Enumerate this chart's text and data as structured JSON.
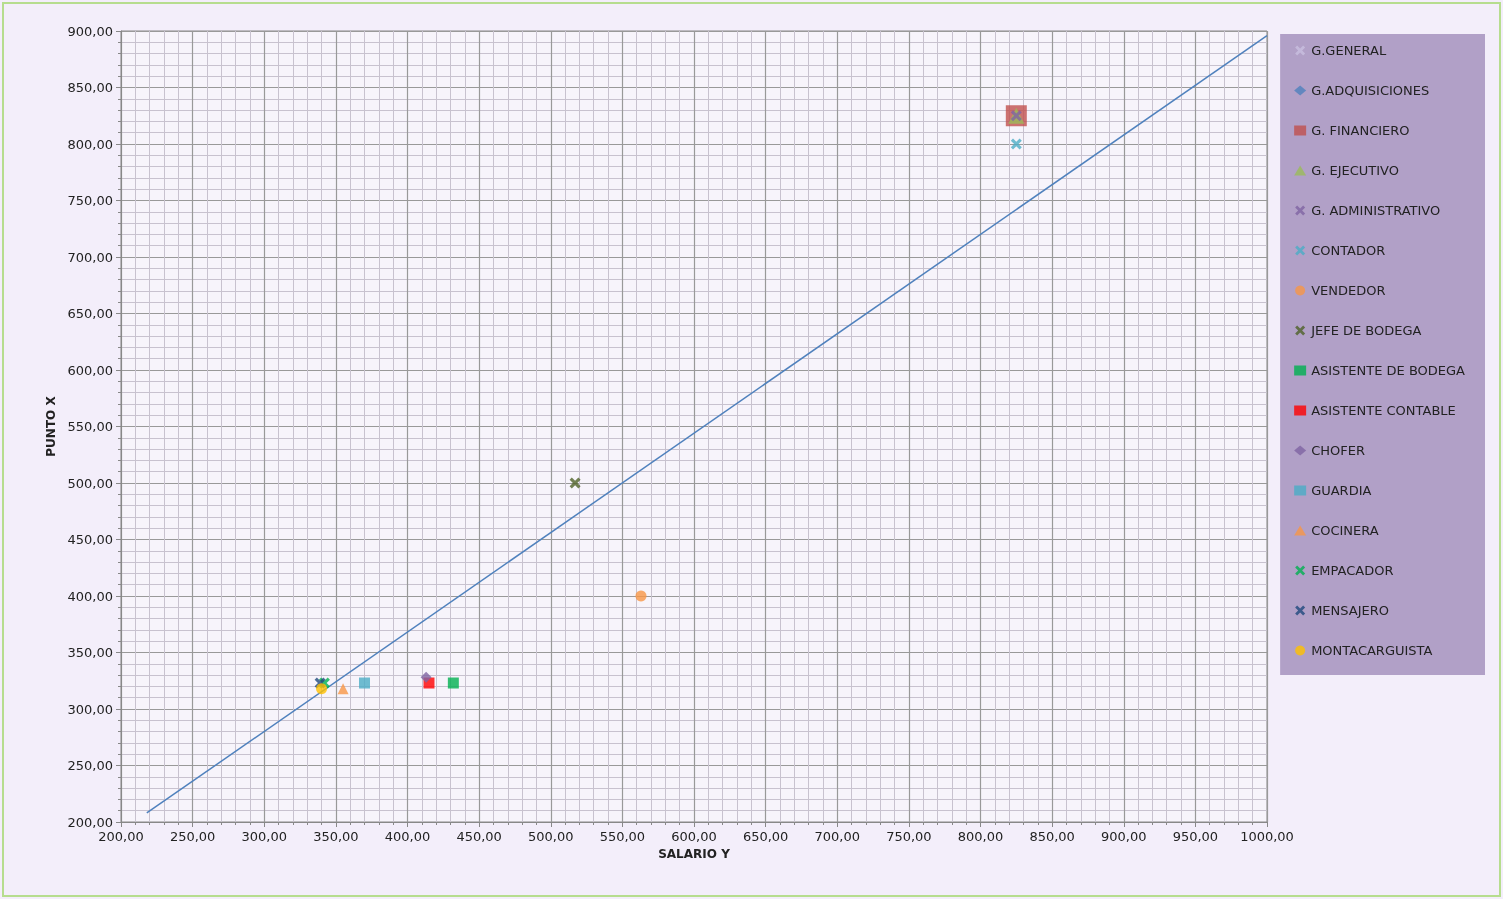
{
  "chart_data": {
    "type": "scatter",
    "xlabel": "SALARIO Y",
    "ylabel": "PUNTO X",
    "xlim": [
      200,
      1000
    ],
    "xticks": [
      {
        "value": 200,
        "label": "200,00"
      },
      {
        "value": 250,
        "label": "250,00"
      },
      {
        "value": 300,
        "label": "300,00"
      },
      {
        "value": 350,
        "label": "350,00"
      },
      {
        "value": 400,
        "label": "400,00"
      },
      {
        "value": 450,
        "label": "450,00"
      },
      {
        "value": 500,
        "label": "500,00"
      },
      {
        "value": 550,
        "label": "550,00"
      },
      {
        "value": 600,
        "label": "600,00"
      },
      {
        "value": 650,
        "label": "650,00"
      },
      {
        "value": 700,
        "label": "700,00"
      },
      {
        "value": 750,
        "label": "750,00"
      },
      {
        "value": 800,
        "label": "800,00"
      },
      {
        "value": 850,
        "label": "850,00"
      },
      {
        "value": 900,
        "label": "900,00"
      },
      {
        "value": 950,
        "label": "950,00"
      },
      {
        "value": 1000,
        "label": "1000,00"
      }
    ],
    "ylim": [
      200,
      900
    ],
    "yticks": [
      {
        "value": 200,
        "label": "200,00"
      },
      {
        "value": 250,
        "label": "250,00"
      },
      {
        "value": 300,
        "label": "300,00"
      },
      {
        "value": 350,
        "label": "350,00"
      },
      {
        "value": 400,
        "label": "400,00"
      },
      {
        "value": 450,
        "label": "450,00"
      },
      {
        "value": 500,
        "label": "500,00"
      },
      {
        "value": 550,
        "label": "550,00"
      },
      {
        "value": 600,
        "label": "600,00"
      },
      {
        "value": 650,
        "label": "650,00"
      },
      {
        "value": 700,
        "label": "700,00"
      },
      {
        "value": 750,
        "label": "750,00"
      },
      {
        "value": 800,
        "label": "800,00"
      },
      {
        "value": 850,
        "label": "850,00"
      },
      {
        "value": 900,
        "label": "900,00"
      }
    ],
    "grid": true,
    "legend": "right",
    "series": [
      {
        "name": "G.GENERAL",
        "color": "#c9bfe0",
        "marker": "cross",
        "x": [
          null
        ],
        "values": [
          null
        ]
      },
      {
        "name": "G.ADQUISICIONES",
        "color": "#4f81bd",
        "marker": "diamond",
        "x": [
          null
        ],
        "values": [
          null
        ]
      },
      {
        "name": "G. FINANCIERO",
        "color": "#c0504d",
        "marker": "square",
        "x": [
          825
        ],
        "values": [
          825
        ]
      },
      {
        "name": "G. EJECUTIVO",
        "color": "#9bbb59",
        "marker": "triangle",
        "x": [
          825
        ],
        "values": [
          825
        ]
      },
      {
        "name": "G. ADMINISTRATIVO",
        "color": "#8064a2",
        "marker": "cross",
        "x": [
          825
        ],
        "values": [
          825
        ]
      },
      {
        "name": "CONTADOR",
        "color": "#4bacc6",
        "marker": "cross",
        "x": [
          825
        ],
        "values": [
          800
        ]
      },
      {
        "name": "VENDEDOR",
        "color": "#f79646",
        "marker": "circle",
        "x": [
          563
        ],
        "values": [
          400
        ]
      },
      {
        "name": "JEFE DE BODEGA",
        "color": "#4f6228",
        "marker": "cross",
        "x": [
          517
        ],
        "values": [
          500
        ]
      },
      {
        "name": "ASISTENTE DE BODEGA",
        "color": "#00b050",
        "marker": "square",
        "x": [
          432
        ],
        "values": [
          323
        ]
      },
      {
        "name": "ASISTENTE CONTABLE",
        "color": "#ff0000",
        "marker": "square",
        "x": [
          415
        ],
        "values": [
          323
        ]
      },
      {
        "name": "CHOFER",
        "color": "#8064a2",
        "marker": "diamond",
        "x": [
          413
        ],
        "values": [
          328
        ]
      },
      {
        "name": "GUARDIA",
        "color": "#4bacc6",
        "marker": "square",
        "x": [
          370
        ],
        "values": [
          323
        ]
      },
      {
        "name": "COCINERA",
        "color": "#f79646",
        "marker": "triangle",
        "x": [
          355
        ],
        "values": [
          318
        ]
      },
      {
        "name": "EMPACADOR",
        "color": "#00b050",
        "marker": "cross",
        "x": [
          342
        ],
        "values": [
          323
        ]
      },
      {
        "name": "MENSAJERO",
        "color": "#1f497d",
        "marker": "cross",
        "x": [
          339
        ],
        "values": [
          323
        ]
      },
      {
        "name": "MONTACARGUISTA",
        "color": "#ffc000",
        "marker": "circle",
        "x": [
          340
        ],
        "values": [
          318
        ]
      },
      {
        "type": "line",
        "color": "#4f81bd",
        "marker": "none",
        "x": [
          218,
          1000
        ],
        "values": [
          208,
          896
        ]
      }
    ]
  }
}
